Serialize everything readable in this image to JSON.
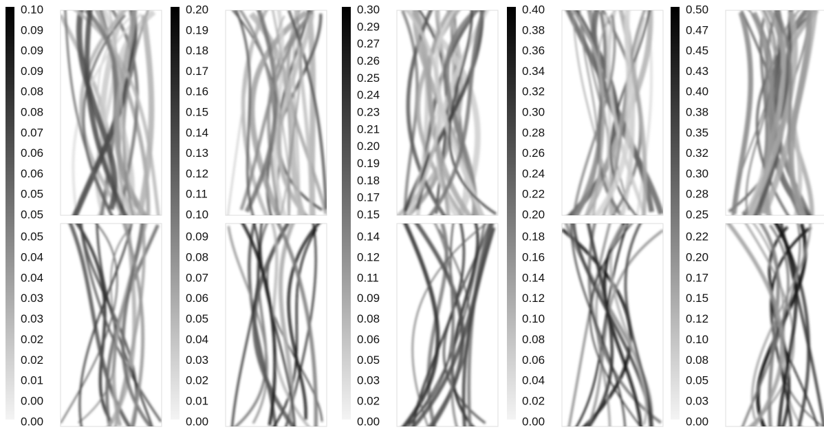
{
  "panels": [
    {
      "top_ticks": [
        "0.10",
        "0.09",
        "0.09",
        "0.09",
        "0.08",
        "0.08",
        "0.07",
        "0.06",
        "0.06",
        "0.05",
        "0.05"
      ],
      "bottom_ticks": [
        "0.05",
        "0.04",
        "0.04",
        "0.03",
        "0.03",
        "0.02",
        "0.02",
        "0.01",
        "0.00",
        "0.00"
      ]
    },
    {
      "top_ticks": [
        "0.20",
        "0.19",
        "0.18",
        "0.17",
        "0.16",
        "0.15",
        "0.14",
        "0.13",
        "0.12",
        "0.11",
        "0.10"
      ],
      "bottom_ticks": [
        "0.09",
        "0.08",
        "0.07",
        "0.06",
        "0.05",
        "0.04",
        "0.03",
        "0.02",
        "0.01",
        "0.00"
      ]
    },
    {
      "top_ticks": [
        "0.30",
        "0.29",
        "0.27",
        "0.26",
        "0.25",
        "0.24",
        "0.23",
        "0.21",
        "0.20",
        "0.19",
        "0.18",
        "0.17",
        "0.15"
      ],
      "bottom_ticks": [
        "0.14",
        "0.12",
        "0.11",
        "0.09",
        "0.08",
        "0.06",
        "0.05",
        "0.03",
        "0.02",
        "0.00"
      ]
    },
    {
      "top_ticks": [
        "0.40",
        "0.38",
        "0.36",
        "0.34",
        "0.32",
        "0.30",
        "0.28",
        "0.26",
        "0.24",
        "0.22",
        "0.20"
      ],
      "bottom_ticks": [
        "0.18",
        "0.16",
        "0.14",
        "0.12",
        "0.10",
        "0.08",
        "0.06",
        "0.04",
        "0.02",
        "0.00"
      ]
    },
    {
      "top_ticks": [
        "0.50",
        "0.47",
        "0.45",
        "0.43",
        "0.40",
        "0.38",
        "0.35",
        "0.32",
        "0.30",
        "0.28",
        "0.25"
      ],
      "bottom_ticks": [
        "0.22",
        "0.20",
        "0.17",
        "0.15",
        "0.12",
        "0.10",
        "0.08",
        "0.05",
        "0.03",
        "0.00"
      ]
    }
  ]
}
